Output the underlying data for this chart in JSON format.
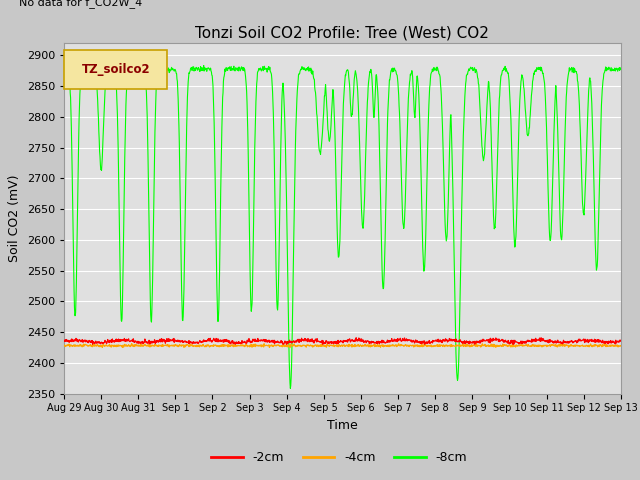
{
  "title": "Tonzi Soil CO2 Profile: Tree (West) CO2",
  "no_data_text": "No data for f_CO2W_4",
  "xlabel": "Time",
  "ylabel": "Soil CO2 (mV)",
  "ylim": [
    2350,
    2920
  ],
  "yticks": [
    2350,
    2400,
    2450,
    2500,
    2550,
    2600,
    2650,
    2700,
    2750,
    2800,
    2850,
    2900
  ],
  "x_tick_labels": [
    "Aug 29",
    "Aug 30",
    "Aug 31",
    "Sep 1",
    "Sep 2",
    "Sep 3",
    "Sep 4",
    "Sep 5",
    "Sep 6",
    "Sep 7",
    "Sep 8",
    "Sep 9",
    "Sep 10",
    "Sep 11",
    "Sep 12",
    "Sep 13"
  ],
  "line_neg2cm_color": "#ff0000",
  "line_neg4cm_color": "#ffa500",
  "line_neg8cm_color": "#00ff00",
  "legend_label_neg2": "-2cm",
  "legend_label_neg4": "-4cm",
  "legend_label_neg8": "-8cm",
  "fig_bg_color": "#c8c8c8",
  "plot_bg_color": "#e0e0e0",
  "legend_box_color": "#f5e6a0",
  "legend_box_edge": "#c8a000",
  "legend_text": "TZ_soilco2",
  "grid_color": "#ffffff",
  "title_fontsize": 11,
  "label_fontsize": 9,
  "tick_fontsize": 8
}
